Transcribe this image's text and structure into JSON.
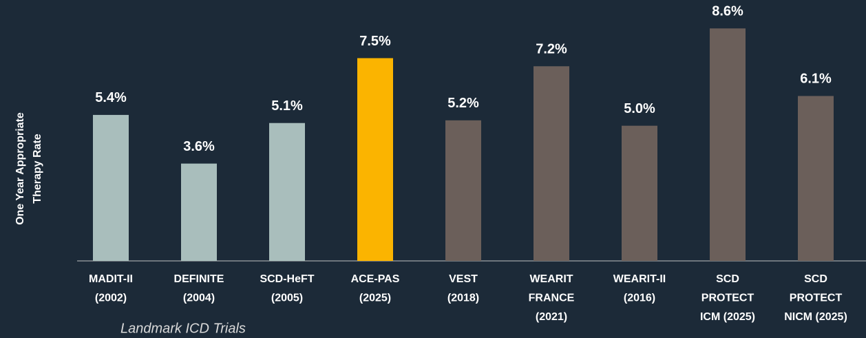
{
  "chart_data": {
    "type": "bar",
    "ylabel": [
      "One Year Appropriate",
      "Therapy Rate"
    ],
    "xlabel": "Landmark ICD Trials",
    "categories": [
      [
        "MADIT-II",
        "(2002)"
      ],
      [
        "DEFINITE",
        "(2004)"
      ],
      [
        "SCD-HeFT",
        "(2005)"
      ],
      [
        "ACE-PAS",
        "(2025)"
      ],
      [
        "VEST",
        "(2018)"
      ],
      [
        "WEARIT",
        "FRANCE",
        "(2021)"
      ],
      [
        "WEARIT-II",
        "(2016)"
      ],
      [
        "SCD",
        "PROTECT",
        "ICM (2025)"
      ],
      [
        "SCD",
        "PROTECT",
        "NICM (2025)"
      ]
    ],
    "values": [
      5.4,
      3.6,
      5.1,
      7.5,
      5.2,
      7.2,
      5.0,
      8.6,
      6.1
    ],
    "value_labels": [
      "5.4%",
      "3.6%",
      "5.1%",
      "7.5%",
      "5.2%",
      "7.2%",
      "5.0%",
      "8.6%",
      "6.1%"
    ],
    "colors": [
      "#a9bebc",
      "#a9bebc",
      "#a9bebc",
      "#fbb400",
      "#6b5f5a",
      "#6b5f5a",
      "#6b5f5a",
      "#6b5f5a",
      "#6b5f5a"
    ],
    "ylim": [
      0,
      9.6
    ]
  }
}
